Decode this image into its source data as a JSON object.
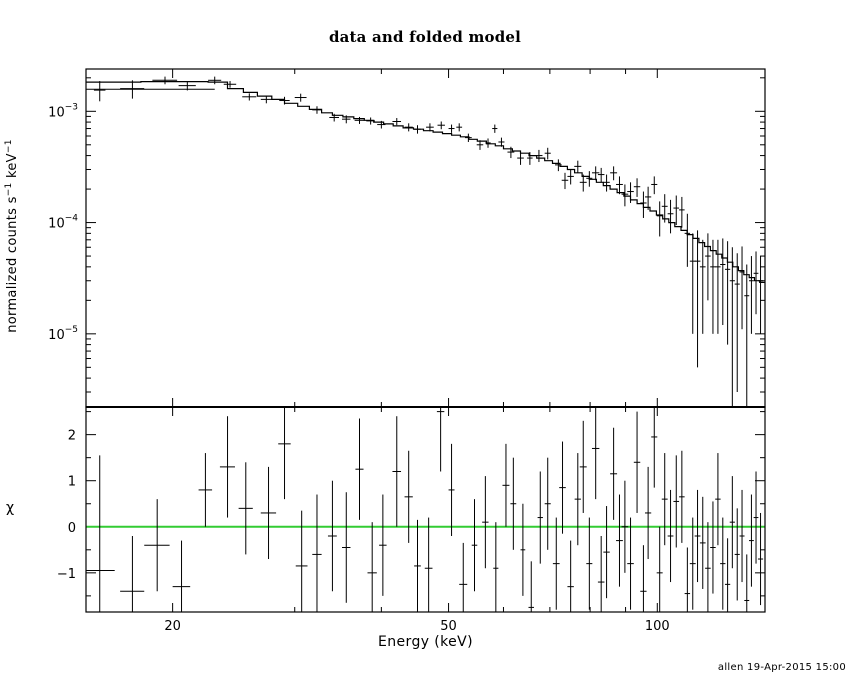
{
  "title": "data and folded model",
  "footer": "allen 19-Apr-2015 15:00",
  "colors": {
    "model": "#000000",
    "data": "#000000",
    "zero_line": "#33cc33",
    "frame": "#000000"
  },
  "chart_data": [
    {
      "type": "scatter",
      "panel": "spectrum",
      "ylabel_parts": {
        "text": "normalized counts s",
        "exp1": "−1",
        "mid": " keV",
        "exp2": "−1"
      },
      "xscale": "log",
      "yscale": "log",
      "xlim": [
        15,
        143
      ],
      "ylim": [
        2.2e-06,
        0.0024
      ],
      "ytick_labels": [
        {
          "value": 0.001,
          "base": "10",
          "exp": "−3"
        },
        {
          "value": 0.0001,
          "base": "10",
          "exp": "−4"
        },
        {
          "value": 1e-05,
          "base": "10",
          "exp": "−5"
        }
      ],
      "series": [
        {
          "role": "data with error bars",
          "points": [
            [
              15.7,
              0.00155,
              0.3,
              0.00032
            ],
            [
              17.5,
              0.0016,
              0.7,
              0.0003
            ],
            [
              19.5,
              0.0019,
              0.8,
              0.00015
            ],
            [
              21.0,
              0.0017,
              0.6,
              0.00016
            ],
            [
              23.0,
              0.0019,
              0.5,
              0.00015
            ],
            [
              24.2,
              0.00175,
              0.5,
              0.00012
            ],
            [
              25.8,
              0.00135,
              0.6,
              0.0001
            ],
            [
              27.3,
              0.00128,
              0.5,
              0.0001
            ],
            [
              29.0,
              0.00125,
              0.5,
              0.0001
            ],
            [
              30.6,
              0.00133,
              0.6,
              0.00011
            ],
            [
              32.3,
              0.00103,
              0.5,
              8e-05
            ],
            [
              34.2,
              0.00088,
              0.55,
              7e-05
            ],
            [
              35.6,
              0.00085,
              0.5,
              7e-05
            ],
            [
              37.2,
              0.00083,
              0.6,
              6e-05
            ],
            [
              38.6,
              0.00082,
              0.55,
              6e-05
            ],
            [
              40.0,
              0.00076,
              0.55,
              6e-05
            ],
            [
              42.1,
              0.00081,
              0.6,
              6e-05
            ],
            [
              43.8,
              0.00072,
              0.6,
              6e-05
            ],
            [
              45.1,
              0.00069,
              0.5,
              6e-05
            ],
            [
              47.0,
              0.00072,
              0.6,
              6e-05
            ],
            [
              48.8,
              0.00075,
              0.6,
              6e-05
            ],
            [
              50.5,
              0.0007,
              0.5,
              6e-05
            ],
            [
              51.8,
              0.00072,
              0.5,
              6e-05
            ],
            [
              53.4,
              0.00058,
              0.6,
              5e-05
            ],
            [
              55.5,
              0.0005,
              0.6,
              5e-05
            ],
            [
              57.0,
              0.00052,
              0.5,
              5e-05
            ],
            [
              58.3,
              0.0007,
              0.5,
              6e-05
            ],
            [
              59.6,
              0.00053,
              0.6,
              5e-05
            ],
            [
              61.5,
              0.00043,
              0.7,
              5e-05
            ],
            [
              63.5,
              0.00038,
              0.7,
              5e-05
            ],
            [
              65.5,
              0.00038,
              0.6,
              5e-05
            ],
            [
              67.5,
              0.0004,
              0.8,
              5e-05
            ],
            [
              69.5,
              0.00042,
              0.7,
              5e-05
            ],
            [
              72.0,
              0.00033,
              0.8,
              4e-05
            ],
            [
              73.6,
              0.00024,
              0.8,
              4e-05
            ],
            [
              75.0,
              0.00026,
              0.8,
              4e-05
            ],
            [
              76.8,
              0.00032,
              0.9,
              4e-05
            ],
            [
              78.2,
              0.00023,
              0.9,
              4e-05
            ],
            [
              79.8,
              0.00025,
              0.8,
              4e-05
            ],
            [
              81.5,
              0.00028,
              1.0,
              4e-05
            ],
            [
              83.0,
              0.00027,
              0.9,
              4e-05
            ],
            [
              84.5,
              0.00023,
              0.9,
              4e-05
            ],
            [
              86.5,
              0.00028,
              1.0,
              4e-05
            ],
            [
              88.2,
              0.00022,
              1.0,
              4e-05
            ],
            [
              89.8,
              0.00018,
              1.0,
              4e-05
            ],
            [
              91.5,
              0.00019,
              1.0,
              4e-05
            ],
            [
              93.5,
              0.00021,
              1.0,
              4e-05
            ],
            [
              95.5,
              0.00015,
              1.0,
              4e-05
            ],
            [
              97.0,
              0.00017,
              1.0,
              4e-05
            ],
            [
              99.0,
              0.00022,
              1.0,
              4e-05
            ],
            [
              100.8,
              0.000115,
              1.0,
              4e-05
            ],
            [
              102.5,
              0.00014,
              1.0,
              4e-05
            ],
            [
              104.5,
              0.00012,
              1.0,
              4e-05
            ],
            [
              106.5,
              0.000135,
              1.0,
              4e-05
            ],
            [
              108.5,
              0.00013,
              1.0,
              4e-05
            ],
            [
              110.5,
              8e-05,
              1.0,
              4e-05
            ],
            [
              112.5,
              4.5e-05,
              1.1,
              3.5e-05
            ],
            [
              114.3,
              4.5e-05,
              1.1,
              4e-05
            ],
            [
              116.3,
              4e-05,
              1.1,
              3e-05
            ],
            [
              118.3,
              5e-05,
              1.1,
              3e-05
            ],
            [
              120.3,
              4e-05,
              1.1,
              3e-05
            ],
            [
              122.3,
              4e-05,
              1.1,
              3e-05
            ],
            [
              124.3,
              4.2e-05,
              1.1,
              3e-05
            ],
            [
              126.3,
              3.8e-05,
              1.1,
              3e-05
            ],
            [
              128.3,
              3e-05,
              1.1,
              3e-05
            ],
            [
              130.4,
              2.8e-05,
              1.1,
              2.5e-05
            ],
            [
              132.5,
              3.6e-05,
              1.1,
              2.5e-05
            ],
            [
              134.6,
              2.2e-05,
              1.1,
              2e-05
            ],
            [
              136.7,
              3e-05,
              1.1,
              2e-05
            ],
            [
              138.8,
              3.5e-05,
              1.1,
              2e-05
            ],
            [
              140.9,
              3e-05,
              1.2,
              2e-05
            ]
          ]
        },
        {
          "role": "folded model (step)",
          "edges": [
            15,
            16.5,
            18,
            19.5,
            21,
            22.5,
            24,
            25.3,
            26.5,
            27.8,
            29,
            30.3,
            31.5,
            32.8,
            34,
            35.2,
            36.5,
            37.8,
            39,
            40.3,
            41.6,
            43,
            44.5,
            46,
            47.5,
            49,
            50.5,
            52,
            53.5,
            55,
            56.7,
            58.4,
            60,
            61.8,
            63.5,
            65.3,
            67,
            68.8,
            70.6,
            72.4,
            74.2,
            76,
            77.9,
            79.8,
            81.7,
            83.6,
            85.5,
            87.5,
            89.5,
            91.5,
            93.5,
            95.5,
            97.6,
            99.7,
            101.8,
            103.9,
            106,
            108.2,
            110.4,
            112.6,
            114.8,
            117,
            119.3,
            121.6,
            123.9,
            126.2,
            128.5,
            130.9,
            133.3,
            135.7,
            138.1,
            140.5,
            143
          ],
          "values": [
            0.00183,
            0.00183,
            0.00185,
            0.00185,
            0.00185,
            0.00183,
            0.0016,
            0.00148,
            0.00137,
            0.00128,
            0.00118,
            0.00111,
            0.00104,
            0.00097,
            0.00092,
            0.00089,
            0.00086,
            0.00083,
            0.0008,
            0.00077,
            0.00074,
            0.00071,
            0.00069,
            0.00067,
            0.00065,
            0.00063,
            0.00061,
            0.00059,
            0.00056,
            0.00054,
            0.00051,
            0.00049,
            0.00046,
            0.00044,
            0.00042,
            0.0004,
            0.00038,
            0.00036,
            0.00034,
            0.00032,
            0.0003,
            0.00028,
            0.00026,
            0.000245,
            0.00023,
            0.000215,
            0.0002,
            0.000186,
            0.000173,
            0.00016,
            0.000148,
            0.000137,
            0.000127,
            0.000117,
            0.000108,
            0.0001,
            9.2e-05,
            8.5e-05,
            7.8e-05,
            7.2e-05,
            6.6e-05,
            6.1e-05,
            5.6e-05,
            5.2e-05,
            4.8e-05,
            4.4e-05,
            4e-05,
            3.7e-05,
            3.4e-05,
            3.2e-05,
            3e-05,
            2.9e-05
          ],
          "extra_step": {
            "from": 15,
            "to": 23,
            "value": 0.00158
          }
        }
      ]
    },
    {
      "type": "scatter",
      "panel": "residuals",
      "ylabel": "χ",
      "xlabel": "Energy (keV)",
      "xscale": "log",
      "xlim": [
        15,
        143
      ],
      "ylim": [
        -1.85,
        2.6
      ],
      "xtick_labels": [
        {
          "value": 20,
          "label": "20"
        },
        {
          "value": 50,
          "label": "50"
        },
        {
          "value": 100,
          "label": "100"
        }
      ],
      "ytick_labels": [
        {
          "value": 2,
          "label": "2"
        },
        {
          "value": 1,
          "label": "1"
        },
        {
          "value": 0,
          "label": "0"
        },
        {
          "value": -1,
          "label": "−1"
        }
      ],
      "zero_line": 0,
      "points": [
        [
          15.7,
          -0.95,
          0.8,
          2.5
        ],
        [
          17.5,
          -1.4,
          0.7,
          1.2
        ],
        [
          19.0,
          -0.4,
          0.8,
          1.0
        ],
        [
          20.6,
          -1.3,
          0.6,
          1.0
        ],
        [
          22.3,
          0.8,
          0.5,
          0.8
        ],
        [
          24.0,
          1.3,
          0.6,
          1.1
        ],
        [
          25.5,
          0.4,
          0.6,
          1.0
        ],
        [
          27.5,
          0.3,
          0.7,
          1.0
        ],
        [
          29.0,
          1.8,
          0.6,
          1.2
        ],
        [
          30.7,
          -0.85,
          0.6,
          1.2
        ],
        [
          32.3,
          -0.6,
          0.5,
          1.3
        ],
        [
          34.0,
          -0.2,
          0.5,
          1.2
        ],
        [
          35.6,
          -0.45,
          0.5,
          1.2
        ],
        [
          37.2,
          1.25,
          0.5,
          1.1
        ],
        [
          38.8,
          -1.0,
          0.6,
          1.1
        ],
        [
          40.2,
          -0.4,
          0.5,
          1.1
        ],
        [
          42.1,
          1.2,
          0.6,
          1.2
        ],
        [
          43.8,
          0.65,
          0.6,
          1.0
        ],
        [
          45.1,
          -0.85,
          0.5,
          1.0
        ],
        [
          46.8,
          -0.9,
          0.6,
          1.1
        ],
        [
          48.7,
          2.5,
          0.6,
          1.3
        ],
        [
          50.5,
          0.8,
          0.5,
          1.0
        ],
        [
          52.5,
          -1.25,
          0.7,
          0.9
        ],
        [
          54.5,
          -0.4,
          0.5,
          1.0
        ],
        [
          56.5,
          0.1,
          0.6,
          1.0
        ],
        [
          58.5,
          -0.9,
          0.5,
          1.0
        ],
        [
          60.5,
          0.9,
          0.7,
          0.9
        ],
        [
          62.0,
          0.5,
          0.6,
          1.0
        ],
        [
          64.0,
          -0.5,
          0.5,
          1.0
        ],
        [
          65.8,
          -1.75,
          0.6,
          1.0
        ],
        [
          67.8,
          0.2,
          0.6,
          1.0
        ],
        [
          69.5,
          0.5,
          0.7,
          1.0
        ],
        [
          71.5,
          -0.8,
          0.8,
          1.0
        ],
        [
          73.0,
          0.85,
          0.8,
          1.0
        ],
        [
          75.0,
          -1.3,
          0.8,
          1.0
        ],
        [
          76.8,
          0.6,
          0.8,
          1.0
        ],
        [
          78.2,
          1.3,
          0.9,
          1.0
        ],
        [
          79.8,
          -0.8,
          0.8,
          1.0
        ],
        [
          81.5,
          1.7,
          1.0,
          1.1
        ],
        [
          83.0,
          -1.2,
          0.9,
          1.0
        ],
        [
          84.5,
          -0.55,
          0.9,
          1.0
        ],
        [
          86.5,
          1.15,
          1.0,
          1.0
        ],
        [
          88.2,
          -0.3,
          1.0,
          1.0
        ],
        [
          89.8,
          0.0,
          1.0,
          1.0
        ],
        [
          91.5,
          -0.8,
          1.0,
          1.0
        ],
        [
          93.5,
          1.4,
          1.0,
          1.1
        ],
        [
          95.5,
          -1.4,
          1.0,
          1.0
        ],
        [
          97.0,
          0.3,
          1.0,
          1.0
        ],
        [
          99.0,
          1.95,
          1.0,
          1.1
        ],
        [
          100.8,
          -1.0,
          1.0,
          1.0
        ],
        [
          102.5,
          0.6,
          1.0,
          1.0
        ],
        [
          104.5,
          -0.2,
          1.0,
          1.0
        ],
        [
          106.5,
          0.55,
          1.0,
          1.0
        ],
        [
          108.5,
          0.65,
          1.0,
          1.0
        ],
        [
          110.5,
          -1.45,
          1.0,
          1.0
        ],
        [
          112.5,
          -0.8,
          1.1,
          1.0
        ],
        [
          114.3,
          -0.2,
          1.1,
          1.0
        ],
        [
          116.3,
          -0.35,
          1.1,
          1.0
        ],
        [
          118.3,
          -0.9,
          1.1,
          1.0
        ],
        [
          120.3,
          -0.45,
          1.1,
          1.0
        ],
        [
          122.3,
          0.6,
          1.1,
          1.0
        ],
        [
          124.3,
          -0.8,
          1.1,
          1.0
        ],
        [
          126.3,
          -1.25,
          1.1,
          1.0
        ],
        [
          128.3,
          0.1,
          1.1,
          1.0
        ],
        [
          130.4,
          -0.6,
          1.1,
          1.0
        ],
        [
          132.5,
          -0.2,
          1.1,
          1.0
        ],
        [
          134.6,
          -1.6,
          1.1,
          1.0
        ],
        [
          136.7,
          -0.3,
          1.1,
          1.0
        ],
        [
          138.8,
          0.2,
          1.1,
          1.0
        ],
        [
          140.9,
          -0.7,
          1.2,
          1.0
        ]
      ]
    }
  ]
}
